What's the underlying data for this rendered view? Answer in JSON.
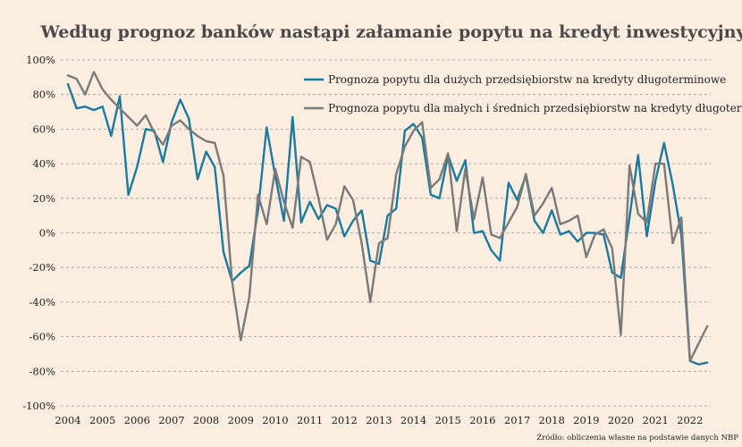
{
  "chart_data": {
    "type": "line",
    "title": "Według prognoz banków nastąpi załamanie popytu na kredyt inwestycyjny",
    "source": "Źródło: obliczenia własne na podstawie danych NBP",
    "xlabel": "",
    "ylabel": "",
    "ylim": [
      -100,
      100
    ],
    "y_ticks": [
      "100%",
      "80%",
      "60%",
      "40%",
      "20%",
      "0%",
      "-20%",
      "-40%",
      "-60%",
      "-80%",
      "-100%"
    ],
    "y_tick_values": [
      100,
      80,
      60,
      40,
      20,
      0,
      -20,
      -40,
      -60,
      -80,
      -100
    ],
    "x_ticks": [
      "2004",
      "2005",
      "2006",
      "2007",
      "2008",
      "2009",
      "2010",
      "2011",
      "2012",
      "2013",
      "2014",
      "2015",
      "2016",
      "2017",
      "2018",
      "2019",
      "2020",
      "2021",
      "2022"
    ],
    "x_tick_values": [
      2004,
      2005,
      2006,
      2007,
      2008,
      2009,
      2010,
      2011,
      2012,
      2013,
      2014,
      2015,
      2016,
      2017,
      2018,
      2019,
      2020,
      2021,
      2022
    ],
    "xlim": [
      2004,
      2022.6
    ],
    "grid": true,
    "legend_position": "top-right",
    "x": [
      2004.0,
      2004.25,
      2004.5,
      2004.75,
      2005.0,
      2005.25,
      2005.5,
      2005.75,
      2006.0,
      2006.25,
      2006.5,
      2006.75,
      2007.0,
      2007.25,
      2007.5,
      2007.75,
      2008.0,
      2008.25,
      2008.5,
      2008.75,
      2009.0,
      2009.25,
      2009.5,
      2009.75,
      2010.0,
      2010.25,
      2010.5,
      2010.75,
      2011.0,
      2011.25,
      2011.5,
      2011.75,
      2012.0,
      2012.25,
      2012.5,
      2012.75,
      2013.0,
      2013.25,
      2013.5,
      2013.75,
      2014.0,
      2014.25,
      2014.5,
      2014.75,
      2015.0,
      2015.25,
      2015.5,
      2015.75,
      2016.0,
      2016.25,
      2016.5,
      2016.75,
      2017.0,
      2017.25,
      2017.5,
      2017.75,
      2018.0,
      2018.25,
      2018.5,
      2018.75,
      2019.0,
      2019.25,
      2019.5,
      2019.75,
      2020.0,
      2020.25,
      2020.5,
      2020.75,
      2021.0,
      2021.25,
      2021.5,
      2021.75,
      2022.0,
      2022.25,
      2022.5
    ],
    "series": [
      {
        "name": "Prognoza popytu dla dużych przedsiębiorstw na kredyty długoterminowe",
        "color": "#1a7aa0",
        "values": [
          86,
          72,
          73,
          71,
          73,
          56,
          79,
          22,
          38,
          60,
          59,
          41,
          64,
          77,
          66,
          31,
          47,
          38,
          -11,
          -28,
          -23,
          -19,
          13,
          61,
          33,
          7,
          67,
          6,
          18,
          8,
          16,
          14,
          -2,
          7,
          13,
          -16,
          -18,
          10,
          14,
          59,
          63,
          55,
          22,
          20,
          45,
          30,
          42,
          0,
          1,
          -10,
          -16,
          29,
          19,
          33,
          7,
          0,
          13,
          -1,
          1,
          -5,
          0,
          0,
          -1,
          -23,
          -26,
          9,
          45,
          -2,
          30,
          52,
          28,
          -1,
          -74,
          -76,
          -75
        ]
      },
      {
        "name": "Prognoza popytu dla małych i średnich przedsiębiorstw na kredyty długoterminowe",
        "color": "#7a7a7a",
        "values": [
          91,
          89,
          80,
          93,
          83,
          77,
          72,
          67,
          62,
          68,
          58,
          51,
          62,
          65,
          60,
          56,
          53,
          52,
          33,
          -28,
          -62,
          -37,
          22,
          5,
          37,
          18,
          3,
          44,
          41,
          20,
          -4,
          5,
          27,
          19,
          -6,
          -40,
          -6,
          -3,
          34,
          50,
          59,
          64,
          26,
          31,
          46,
          1,
          37,
          8,
          32,
          -1,
          -3,
          6,
          15,
          34,
          10,
          17,
          26,
          5,
          7,
          10,
          -14,
          -1,
          2,
          -9,
          -59,
          39,
          11,
          6,
          40,
          40,
          -6,
          9,
          -74,
          -64,
          -54
        ]
      }
    ]
  }
}
